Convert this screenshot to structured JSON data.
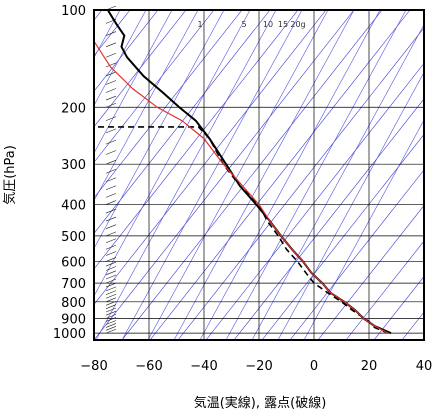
{
  "chart_data": {
    "type": "line",
    "title": "",
    "xlabel": "気温(実線), 露点(破線)",
    "ylabel": "気圧(hPa)",
    "xlim": [
      -80,
      40
    ],
    "ylim": [
      1050,
      100
    ],
    "y_scale": "log",
    "x_ticks": [
      -80,
      -60,
      -40,
      -20,
      0,
      20,
      40
    ],
    "y_ticks": [
      100,
      200,
      300,
      400,
      500,
      600,
      700,
      800,
      900,
      1000
    ],
    "mixing_ratio_labels": [
      "1",
      "5",
      "10",
      "15",
      "20g"
    ],
    "series": [
      {
        "style": "solid-black",
        "points": [
          [
            28,
            1000
          ],
          [
            22,
            950
          ],
          [
            18,
            900
          ],
          [
            15,
            850
          ],
          [
            11,
            800
          ],
          [
            6,
            750
          ],
          [
            3,
            700
          ],
          [
            -1,
            650
          ],
          [
            -4,
            600
          ],
          [
            -8,
            550
          ],
          [
            -12,
            500
          ],
          [
            -16,
            450
          ],
          [
            -21,
            400
          ],
          [
            -27,
            350
          ],
          [
            -32,
            300
          ],
          [
            -38,
            250
          ],
          [
            -43,
            220
          ],
          [
            -49,
            200
          ],
          [
            -55,
            180
          ],
          [
            -62,
            160
          ],
          [
            -68,
            140
          ],
          [
            -70,
            130
          ],
          [
            -69,
            120
          ],
          [
            -72,
            110
          ],
          [
            -75,
            100
          ]
        ]
      },
      {
        "style": "dashed-black",
        "points": [
          [
            27,
            1000
          ],
          [
            22,
            960
          ],
          [
            20,
            920
          ],
          [
            14,
            850
          ],
          [
            10,
            800
          ],
          [
            5,
            750
          ],
          [
            0,
            700
          ],
          [
            -3,
            650
          ],
          [
            -6,
            600
          ],
          [
            -10,
            550
          ],
          [
            -13,
            500
          ],
          [
            -17,
            450
          ],
          [
            -20,
            400
          ],
          [
            -27,
            350
          ],
          [
            -33,
            300
          ],
          [
            -38,
            250
          ],
          [
            -42,
            230
          ],
          [
            -80,
            230
          ]
        ]
      },
      {
        "style": "solid-red",
        "points": [
          [
            27,
            1000
          ],
          [
            22,
            950
          ],
          [
            18,
            900
          ],
          [
            15,
            850
          ],
          [
            11,
            800
          ],
          [
            6,
            750
          ],
          [
            3,
            700
          ],
          [
            -1,
            650
          ],
          [
            -4,
            600
          ],
          [
            -8,
            550
          ],
          [
            -12,
            500
          ],
          [
            -16,
            450
          ],
          [
            -20,
            400
          ],
          [
            -26,
            350
          ],
          [
            -33,
            300
          ],
          [
            -40,
            250
          ],
          [
            -48,
            220
          ],
          [
            -57,
            200
          ],
          [
            -66,
            175
          ],
          [
            -74,
            150
          ],
          [
            -80,
            125
          ]
        ]
      }
    ],
    "background_lines": {
      "isotherm_slopes": "steep blue lines descending left",
      "dry_adiabats": "blue lines"
    }
  }
}
